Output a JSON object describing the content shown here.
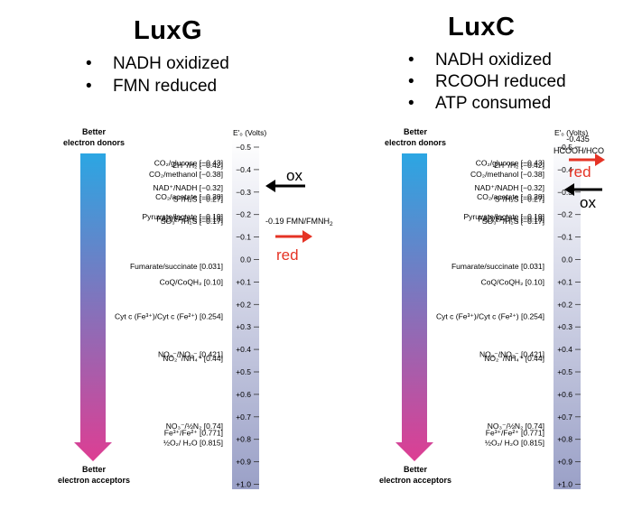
{
  "panels": [
    {
      "title": "LuxG",
      "bullets": [
        "NADH oxidized",
        "FMN reduced"
      ],
      "annotations": {
        "ox": "ox",
        "red": "red",
        "pair_label": "-0.19 FMN/FMNH",
        "pair_label_sub": "2"
      }
    },
    {
      "title": "LuxC",
      "bullets": [
        "NADH oxidized",
        "RCOOH reduced",
        "ATP consumed"
      ],
      "annotations": {
        "ox": "ox",
        "red": "red",
        "pair_value": "-0.435",
        "pair_label": "HCOOH/HCO"
      }
    }
  ],
  "scale": {
    "header": "E′₀ (Volts)",
    "top_label": [
      "Better",
      "electron donors"
    ],
    "bottom_label": [
      "Better",
      "electron acceptors"
    ],
    "ticks": [
      "−0.5",
      "−0.4",
      "−0.3",
      "−0.2",
      "−0.1",
      "0.0",
      "+0.1",
      "+0.2",
      "+0.3",
      "+0.4",
      "+0.5",
      "+0.6",
      "+0.7",
      "+0.8",
      "+0.9",
      "+1.0"
    ],
    "couples": [
      {
        "text": "CO₂/glucose [−0.43]",
        "v": -0.43
      },
      {
        "text": "2H⁺/H₂ [−0.42]",
        "v": -0.42
      },
      {
        "text": "CO₂/methanol [−0.38]",
        "v": -0.38
      },
      {
        "text": "NAD⁺/NADH [−0.32]",
        "v": -0.32
      },
      {
        "text": "CO₂/acetate [−0.28]",
        "v": -0.28
      },
      {
        "text": "S⁰/H₂S [−0.27]",
        "v": -0.27
      },
      {
        "text": "Pyruvate/lactate [−0.19]",
        "v": -0.19
      },
      {
        "text": "FAD/FADH₂ [−0.18]",
        "v": -0.18
      },
      {
        "text": "SO₃²⁻/H₂S [−0.17]",
        "v": -0.17
      },
      {
        "text": "Fumarate/succinate [0.031]",
        "v": 0.031
      },
      {
        "text": "CoQ/CoQH₂ [0.10]",
        "v": 0.1
      },
      {
        "text": "Cyt c (Fe³⁺)/Cyt c (Fe²⁺) [0.254]",
        "v": 0.254
      },
      {
        "text": "NO₃⁻/NO₂⁻ [0.421]",
        "v": 0.421
      },
      {
        "text": "NO₂⁻/NH₄⁺ [0.44]",
        "v": 0.44
      },
      {
        "text": "NO₃⁻/½N₂ [0.74]",
        "v": 0.74
      },
      {
        "text": "Fe³⁺/Fe²⁺ [0.771]",
        "v": 0.771
      },
      {
        "text": "½O₂/ H₂O [0.815]",
        "v": 0.815
      }
    ]
  },
  "colors": {
    "arrow_top": "#2ba6e3",
    "arrow_bottom": "#dd3e93",
    "bar_top": "#ffffff",
    "bar_bottom": "#9aa0c7",
    "red_arrow": "#e53325",
    "black_arrow": "#000000"
  }
}
